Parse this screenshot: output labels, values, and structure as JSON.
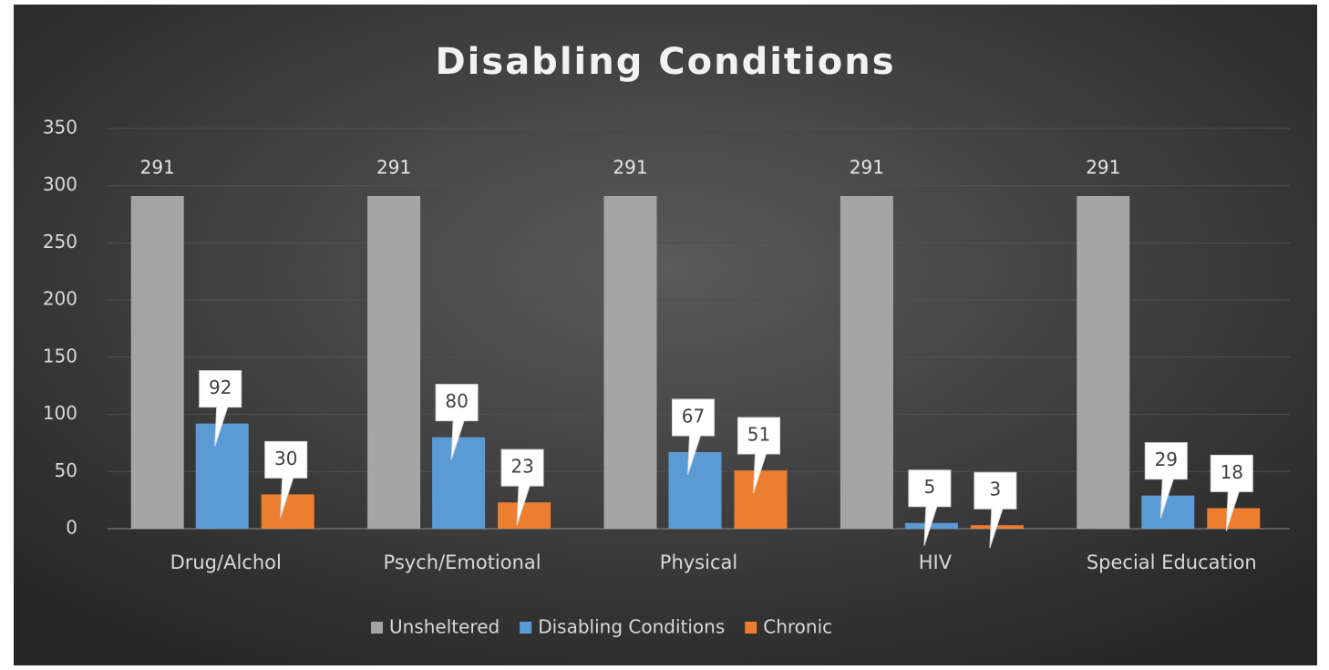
{
  "chart_data": {
    "type": "bar",
    "title": "Disabling Conditions",
    "categories": [
      "Drug/Alchol",
      "Psych/Emotional",
      "Physical",
      "HIV",
      "Special Education"
    ],
    "series": [
      {
        "name": "Unsheltered",
        "color": "#a5a5a5",
        "values": [
          291,
          291,
          291,
          291,
          291
        ]
      },
      {
        "name": "Disabling Conditions",
        "color": "#5b9bd5",
        "values": [
          92,
          80,
          67,
          5,
          29
        ]
      },
      {
        "name": "Chronic",
        "color": "#ed7d31",
        "values": [
          30,
          23,
          51,
          3,
          18
        ]
      }
    ],
    "ylim": [
      0,
      350
    ],
    "yticks": [
      0,
      50,
      100,
      150,
      200,
      250,
      300,
      350
    ],
    "grid": true,
    "legend": "bottom"
  }
}
